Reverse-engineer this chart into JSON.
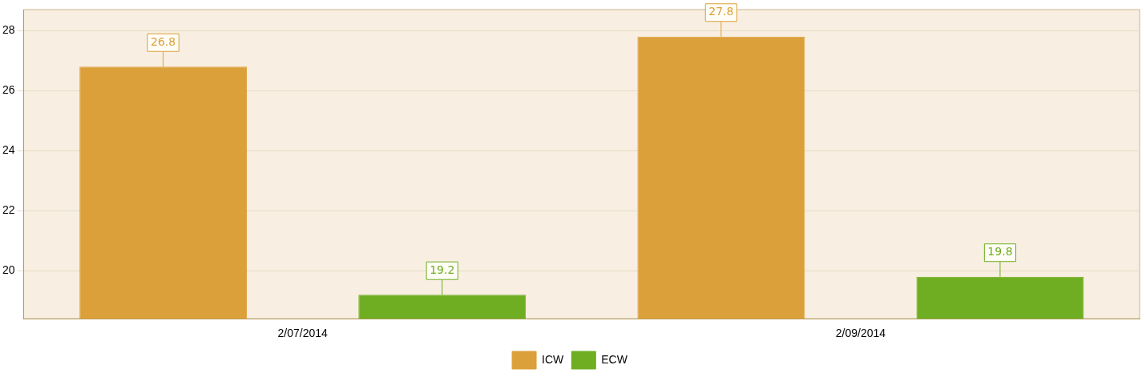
{
  "chart_data": {
    "type": "bar",
    "categories": [
      "2/07/2014",
      "2/09/2014"
    ],
    "series": [
      {
        "name": "ICW",
        "color": "#dba03a",
        "values": [
          26.8,
          27.8
        ]
      },
      {
        "name": "ECW",
        "color": "#6fae22",
        "values": [
          19.2,
          19.8
        ]
      }
    ],
    "ylim": [
      18.4,
      28.7
    ],
    "yticks": [
      20,
      22,
      24,
      26,
      28
    ],
    "grid": "y",
    "legend": "bottom",
    "data_labels": true
  }
}
